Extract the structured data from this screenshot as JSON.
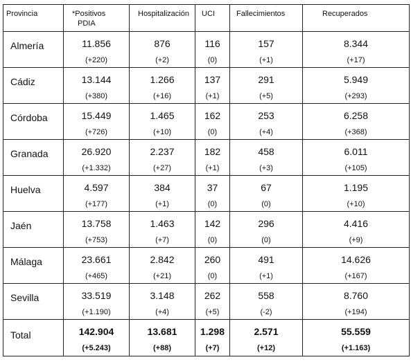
{
  "headers": {
    "provincia": "Provincia",
    "positivos_line1": "*Positivos",
    "positivos_line2": "PDIA",
    "hospitalizacion": "Hospitalización",
    "uci": "UCI",
    "fallecimientos": "Fallecimientos",
    "recuperados": "Recuperados"
  },
  "rows": [
    {
      "provincia": "Almería",
      "positivos": "11.856",
      "positivos_delta": "(+220)",
      "hospitalizacion": "876",
      "hospitalizacion_delta": "(+2)",
      "uci": "116",
      "uci_delta": "(0)",
      "fallecimientos": "157",
      "fallecimientos_delta": "(+1)",
      "recuperados": "8.344",
      "recuperados_delta": "(+17)"
    },
    {
      "provincia": "Cádiz",
      "positivos": "13.144",
      "positivos_delta": "(+380)",
      "hospitalizacion": "1.266",
      "hospitalizacion_delta": "(+16)",
      "uci": "137",
      "uci_delta": "(+1)",
      "fallecimientos": "291",
      "fallecimientos_delta": "(+5)",
      "recuperados": "5.949",
      "recuperados_delta": "(+293)"
    },
    {
      "provincia": "Córdoba",
      "positivos": "15.449",
      "positivos_delta": "(+726)",
      "hospitalizacion": "1.465",
      "hospitalizacion_delta": "(+10)",
      "uci": "162",
      "uci_delta": "(0)",
      "fallecimientos": "253",
      "fallecimientos_delta": "(+4)",
      "recuperados": "6.258",
      "recuperados_delta": "(+368)"
    },
    {
      "provincia": "Granada",
      "positivos": "26.920",
      "positivos_delta": "(+1.332)",
      "hospitalizacion": "2.237",
      "hospitalizacion_delta": "(+27)",
      "uci": "182",
      "uci_delta": "(+1)",
      "fallecimientos": "458",
      "fallecimientos_delta": "(+3)",
      "recuperados": "6.011",
      "recuperados_delta": "(+105)"
    },
    {
      "provincia": "Huelva",
      "positivos": "4.597",
      "positivos_delta": "(+177)",
      "hospitalizacion": "384",
      "hospitalizacion_delta": "(+1)",
      "uci": "37",
      "uci_delta": "(0)",
      "fallecimientos": "67",
      "fallecimientos_delta": "(0)",
      "recuperados": "1.195",
      "recuperados_delta": "(+10)"
    },
    {
      "provincia": "Jaén",
      "positivos": "13.758",
      "positivos_delta": "(+753)",
      "hospitalizacion": "1.463",
      "hospitalizacion_delta": "(+7)",
      "uci": "142",
      "uci_delta": "(0)",
      "fallecimientos": "296",
      "fallecimientos_delta": "(0)",
      "recuperados": "4.416",
      "recuperados_delta": "(+9)"
    },
    {
      "provincia": "Málaga",
      "positivos": "23.661",
      "positivos_delta": "(+465)",
      "hospitalizacion": "2.842",
      "hospitalizacion_delta": "(+21)",
      "uci": "260",
      "uci_delta": "(0)",
      "fallecimientos": "491",
      "fallecimientos_delta": "(+1)",
      "recuperados": "14.626",
      "recuperados_delta": "(+167)"
    },
    {
      "provincia": "Sevilla",
      "positivos": "33.519",
      "positivos_delta": "(+1.190)",
      "hospitalizacion": "3.148",
      "hospitalizacion_delta": "(+4)",
      "uci": "262",
      "uci_delta": "(+5)",
      "fallecimientos": "558",
      "fallecimientos_delta": "(-2)",
      "recuperados": "8.760",
      "recuperados_delta": "(+194)"
    }
  ],
  "total": {
    "provincia": "Total",
    "positivos": "142.904",
    "positivos_delta": "(+5.243)",
    "hospitalizacion": "13.681",
    "hospitalizacion_delta": "(+88)",
    "uci": "1.298",
    "uci_delta": "(+7)",
    "fallecimientos": "2.571",
    "fallecimientos_delta": "(+12)",
    "recuperados": "55.559",
    "recuperados_delta": "(+1.163)"
  }
}
